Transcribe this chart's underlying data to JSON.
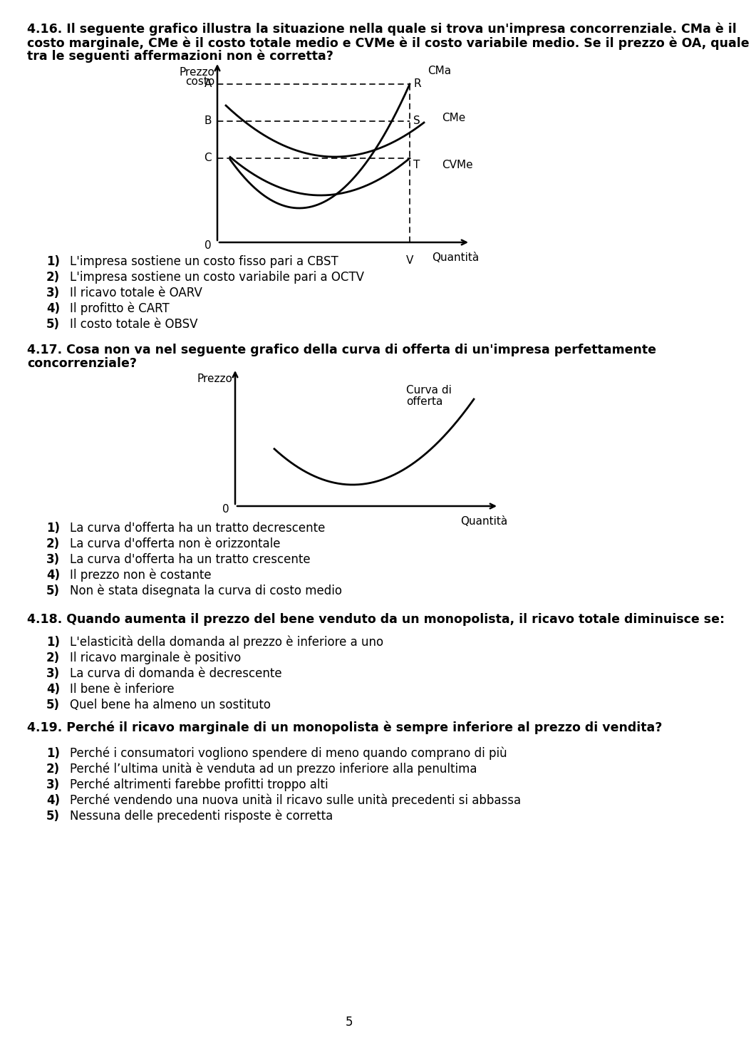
{
  "line416_1": "4.16. Il seguente grafico illustra la situazione nella quale si trova un'impresa concorrenziale. CMa è il",
  "line416_2": "costo marginale, CMe è il costo totale medio e CVMe è il costo variabile medio. Se il prezzo è OA, quale",
  "line416_3": "tra le seguenti affermazioni non è corretta?",
  "q416_items": [
    "L'impresa sostiene un costo fisso pari a CBST",
    "L'impresa sostiene un costo variabile pari a OCTV",
    "Il ricavo totale è OARV",
    "Il profitto è CART",
    "Il costo totale è OBSV"
  ],
  "line417_1": "4.17. Cosa non va nel seguente grafico della curva di offerta di un'impresa perfettamente",
  "line417_2": "concorrenziale?",
  "q417_items": [
    "La curva d'offerta ha un tratto decrescente",
    "La curva d'offerta non è orizzontale",
    "La curva d'offerta ha un tratto crescente",
    "Il prezzo non è costante",
    "Non è stata disegnata la curva di costo medio"
  ],
  "line418": "4.18. Quando aumenta il prezzo del bene venduto da un monopolista, il ricavo totale diminuisce se:",
  "q418_items": [
    "L'elasticità della domanda al prezzo è inferiore a uno",
    "Il ricavo marginale è positivo",
    "La curva di domanda è decrescente",
    "Il bene è inferiore",
    "Quel bene ha almeno un sostituto"
  ],
  "line419": "4.19. Perché il ricavo marginale di un monopolista è sempre inferiore al prezzo di vendita?",
  "q419_items": [
    "Perché i consumatori vogliono spendere di meno quando comprano di più",
    "Perché l’ultima unità è venduta ad un prezzo inferiore alla penultima",
    "Perché altrimenti farebbe profitti troppo alti",
    "Perché vendendo una nuova unità il ricavo sulle unità precedenti si abbassa",
    "Nessuna delle precedenti risposte è corretta"
  ],
  "bg_color": "#ffffff"
}
